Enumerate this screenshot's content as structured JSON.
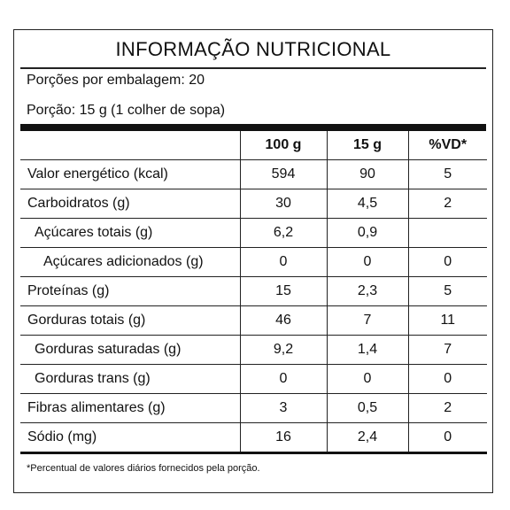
{
  "label": {
    "title": "INFORMAÇÃO NUTRICIONAL",
    "servings_per_package": "Porções por embalagem: 20",
    "serving_size": "Porção: 15 g (1 colher de sopa)",
    "headers": [
      "",
      "100 g",
      "15 g",
      "%VD*"
    ],
    "rows": [
      {
        "name": "Valor energético (kcal)",
        "indent": 0,
        "per100": "594",
        "perServing": "90",
        "dv": "5"
      },
      {
        "name": "Carboidratos (g)",
        "indent": 0,
        "per100": "30",
        "perServing": "4,5",
        "dv": "2"
      },
      {
        "name": "Açúcares totais (g)",
        "indent": 1,
        "per100": "6,2",
        "perServing": "0,9",
        "dv": ""
      },
      {
        "name": "Açúcares adicionados (g)",
        "indent": 2,
        "per100": "0",
        "perServing": "0",
        "dv": "0"
      },
      {
        "name": "Proteínas (g)",
        "indent": 0,
        "per100": "15",
        "perServing": "2,3",
        "dv": "5"
      },
      {
        "name": "Gorduras totais (g)",
        "indent": 0,
        "per100": "46",
        "perServing": "7",
        "dv": "11"
      },
      {
        "name": "Gorduras saturadas (g)",
        "indent": 1,
        "per100": "9,2",
        "perServing": "1,4",
        "dv": "7"
      },
      {
        "name": "Gorduras trans (g)",
        "indent": 1,
        "per100": "0",
        "perServing": "0",
        "dv": "0"
      },
      {
        "name": "Fibras alimentares (g)",
        "indent": 0,
        "per100": "3",
        "perServing": "0,5",
        "dv": "2"
      },
      {
        "name": "Sódio (mg)",
        "indent": 0,
        "per100": "16",
        "perServing": "2,4",
        "dv": "0"
      }
    ],
    "footnote": "*Percentual de valores diários fornecidos pela porção."
  }
}
